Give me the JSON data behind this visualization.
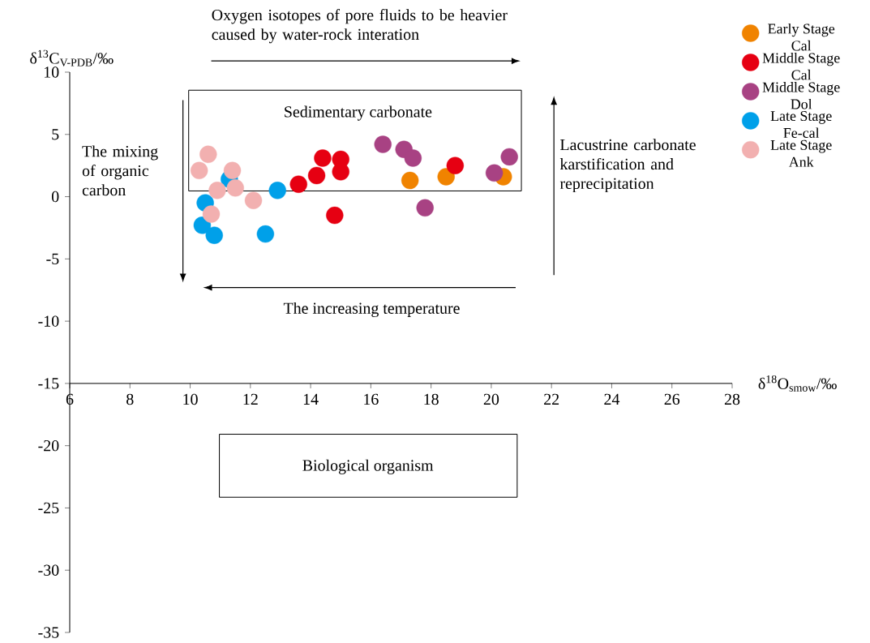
{
  "chart_data": {
    "type": "scatter",
    "xlabel": "δ$^{18}$O$_{smow}$/‰",
    "ylabel": "δ$^{13}$C$_{V-PDB}$/‰",
    "xlim": [
      6,
      28
    ],
    "ylim": [
      -35,
      10
    ],
    "xticks": [
      6,
      8,
      10,
      12,
      14,
      16,
      18,
      20,
      22,
      24,
      26,
      28
    ],
    "yticks": [
      -35,
      -30,
      -25,
      -20,
      -15,
      -10,
      -5,
      0,
      5,
      10
    ],
    "marker": "circle",
    "legend": "right",
    "series": [
      {
        "name": "Early Stage Cal",
        "color": "#f08300",
        "x": [
          17.3,
          18.5,
          20.4
        ],
        "values": [
          1.3,
          1.6,
          1.6
        ]
      },
      {
        "name": "Middle Stage Cal",
        "color": "#e60012",
        "x": [
          13.6,
          14.2,
          14.4,
          15.0,
          15.0,
          14.8,
          18.8
        ],
        "values": [
          1.0,
          1.7,
          3.1,
          3.0,
          2.0,
          -1.5,
          2.5
        ]
      },
      {
        "name": "Middle Stage Dol",
        "color": "#a84283",
        "x": [
          16.4,
          17.1,
          17.4,
          17.8,
          20.1,
          20.6
        ],
        "values": [
          4.2,
          3.8,
          3.1,
          -0.9,
          1.9,
          3.2
        ]
      },
      {
        "name": "Late Stage Fe-cal",
        "color": "#00a0e9",
        "x": [
          11.3,
          10.5,
          12.9,
          10.4,
          10.8,
          12.5
        ],
        "values": [
          1.4,
          -0.5,
          0.5,
          -2.3,
          -3.1,
          -3.0
        ]
      },
      {
        "name": "Late Stage Ank",
        "color": "#f2b0b0",
        "x": [
          10.6,
          10.3,
          11.4,
          10.9,
          11.5,
          10.7,
          12.1
        ],
        "values": [
          3.4,
          2.1,
          2.1,
          0.5,
          0.7,
          -1.4,
          -0.3
        ]
      }
    ],
    "annotations": [
      "Oxygen isotopes of pore fluids to be heavier caused by water-rock interation",
      "Sedimentary carbonate",
      "The mixing of organic carbon",
      "Lacustrine carbonate karstification and reprecipitation",
      "The increasing temperature",
      "Biological organism"
    ]
  }
}
